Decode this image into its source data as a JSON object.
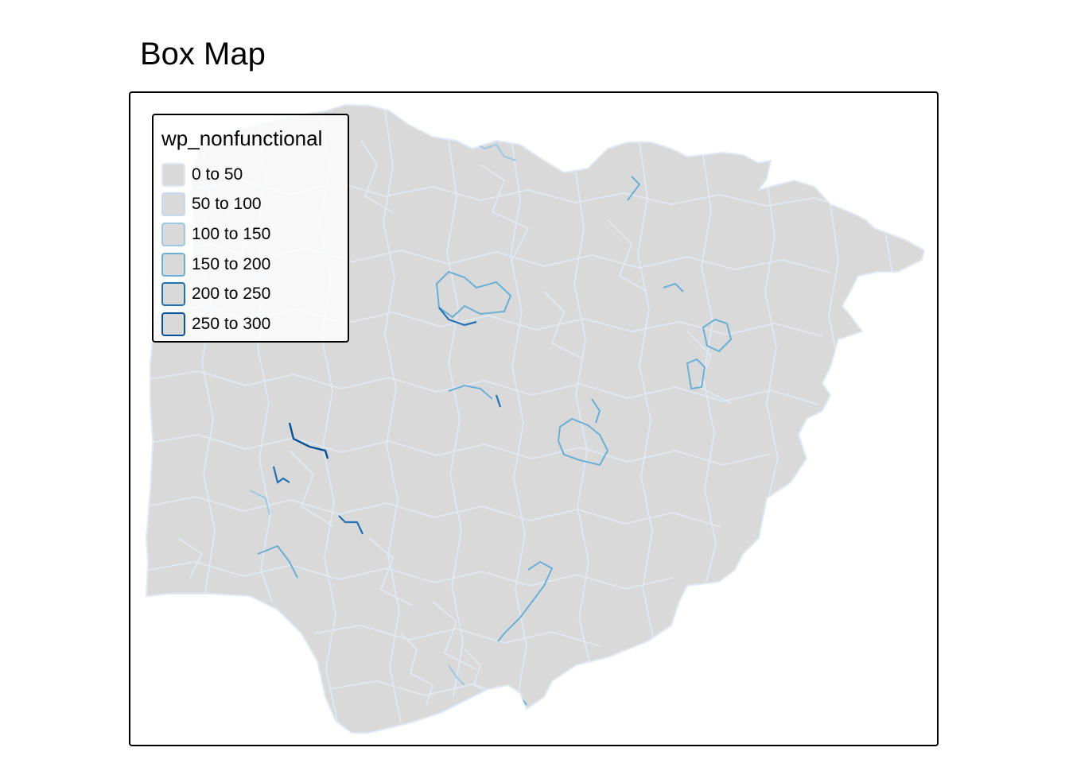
{
  "map": {
    "title": "Box Map",
    "fill_color": "#d9d9d9",
    "background_color": "#ffffff",
    "frame_color": "#000000"
  },
  "legend": {
    "title": "wp_nonfunctional",
    "placement": "top-left",
    "items": [
      {
        "label": "0 to 50",
        "color": "#deebf7"
      },
      {
        "label": "50 to 100",
        "color": "#c6dbef"
      },
      {
        "label": "100 to 150",
        "color": "#9ecae1"
      },
      {
        "label": "150 to 200",
        "color": "#6baed6"
      },
      {
        "label": "200 to 250",
        "color": "#2171b5"
      },
      {
        "label": "250 to 300",
        "color": "#08519c"
      }
    ]
  }
}
